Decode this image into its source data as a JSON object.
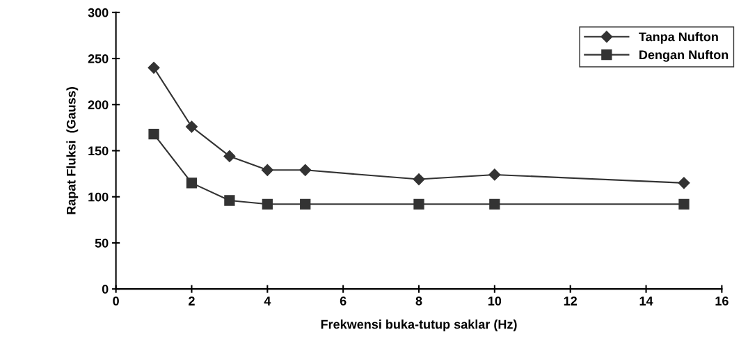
{
  "chart_data": {
    "type": "line",
    "xlabel": "Frekwensi buka-tutup saklar (Hz)",
    "ylabel": "Rapat Fluksi  (Gauss)",
    "xlim": [
      0,
      16
    ],
    "xticks": [
      0,
      2,
      4,
      6,
      8,
      10,
      12,
      14,
      16
    ],
    "ylim": [
      0,
      300
    ],
    "yticks": [
      0,
      50,
      100,
      150,
      200,
      250,
      300
    ],
    "x": [
      1,
      2,
      3,
      4,
      5,
      8,
      10,
      15
    ],
    "series": [
      {
        "name": "Tanpa Nufton",
        "color": "#333333",
        "marker": "diamond",
        "values": [
          240,
          176,
          144,
          129,
          129,
          119,
          124,
          115
        ]
      },
      {
        "name": "Dengan Nufton",
        "color": "#333333",
        "marker": "square",
        "values": [
          168,
          115,
          96,
          92,
          92,
          92,
          92,
          92
        ]
      }
    ],
    "legend": "top right",
    "grid": false,
    "line_style": "solid"
  }
}
